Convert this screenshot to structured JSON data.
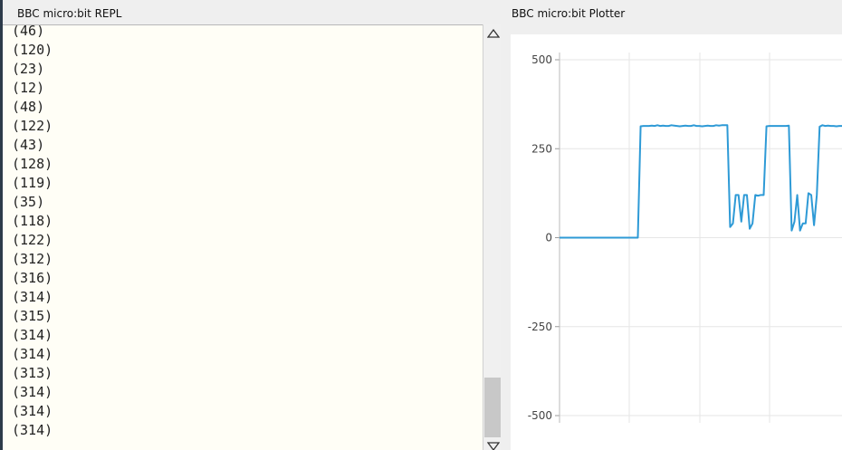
{
  "repl": {
    "title": "BBC micro:bit REPL",
    "lines": [
      "(46)",
      "(120)",
      "(23)",
      "(12)",
      "(48)",
      "(122)",
      "(43)",
      "(128)",
      "(119)",
      "(35)",
      "(118)",
      "(122)",
      "(312)",
      "(316)",
      "(314)",
      "(315)",
      "(314)",
      "(314)",
      "(313)",
      "(314)",
      "(314)",
      "(314)"
    ],
    "scroll_up_icon": "triangle-up-icon",
    "scroll_down_icon": "triangle-down-icon"
  },
  "plotter": {
    "title": "BBC micro:bit Plotter"
  },
  "chart_data": {
    "type": "line",
    "title": "",
    "xlabel": "",
    "ylabel": "",
    "ylim": [
      -500,
      500
    ],
    "yticks": [
      500,
      250,
      0,
      -250,
      -500
    ],
    "grid": true,
    "line_color": "#2e9ad6",
    "series": [
      {
        "values": [
          0,
          0,
          0,
          0,
          0,
          0,
          0,
          0,
          0,
          0,
          0,
          0,
          0,
          0,
          0,
          0,
          0,
          0,
          0,
          0,
          0,
          0,
          0,
          0,
          0,
          0,
          0,
          0,
          0,
          313,
          314,
          314,
          314,
          315,
          314,
          316,
          314,
          315,
          314,
          314,
          316,
          315,
          314,
          313,
          314,
          315,
          314,
          314,
          316,
          314,
          314,
          313,
          314,
          315,
          314,
          314,
          316,
          315,
          316,
          316,
          316,
          30,
          40,
          120,
          120,
          45,
          120,
          120,
          25,
          40,
          120,
          118,
          120,
          120,
          313,
          314,
          314,
          314,
          314,
          314,
          314,
          314,
          315,
          20,
          45,
          120,
          20,
          40,
          40,
          125,
          120,
          35,
          120,
          312,
          316,
          314,
          315,
          314,
          314,
          313,
          314,
          314
        ]
      }
    ]
  }
}
